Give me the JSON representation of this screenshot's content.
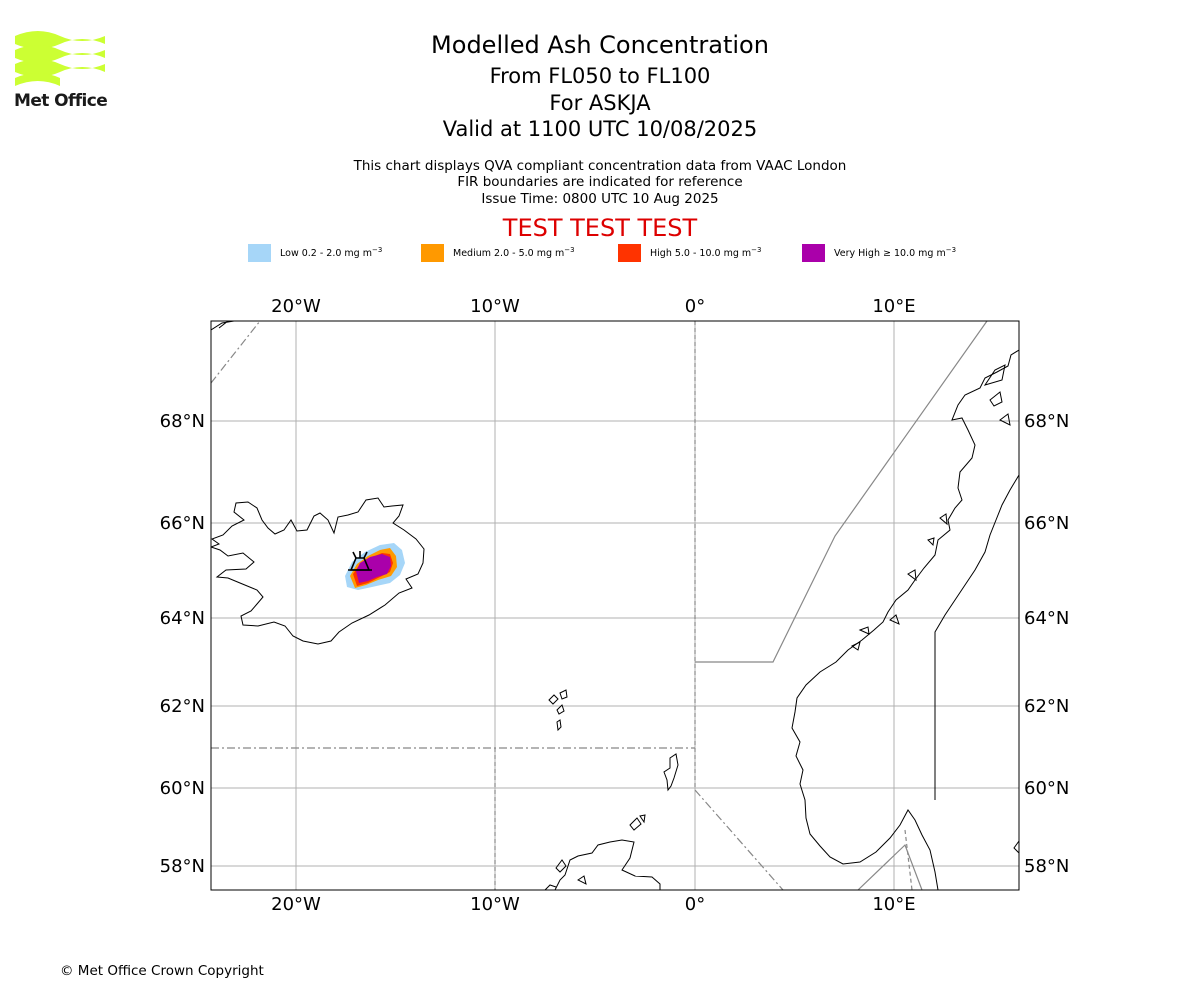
{
  "logo": {
    "text": "Met Office",
    "color": "#ccff33"
  },
  "title": {
    "main": "Modelled Ash Concentration",
    "levels": "From FL050 to FL100",
    "volcano": "For ASKJA",
    "valid": "Valid at 1100 UTC 10/08/2025"
  },
  "subtitle": {
    "line1": "This chart displays QVA compliant concentration data from VAAC London",
    "line2": "FIR boundaries are indicated for reference",
    "line3": "Issue Time: 0800 UTC 10 Aug 2025"
  },
  "test_banner": "TEST TEST TEST",
  "legend": [
    {
      "label": "Low 0.2 - 2.0 mg m",
      "color": "#a6d6f8"
    },
    {
      "label": "Medium 2.0 - 5.0 mg m",
      "color": "#ff9900"
    },
    {
      "label": "High 5.0 - 10.0 mg m",
      "color": "#ff3300"
    },
    {
      "label": "Very High ≥ 10.0 mg m",
      "color": "#aa00aa"
    }
  ],
  "legend_unit_exp": "−3",
  "map": {
    "lon_ticks": [
      "20°W",
      "10°W",
      "0°",
      "10°E"
    ],
    "lat_ticks": [
      "68°N",
      "66°N",
      "64°N",
      "62°N",
      "60°N",
      "58°N"
    ],
    "volcano_marker": "volcano-icon"
  },
  "copyright": "© Met Office Crown Copyright"
}
